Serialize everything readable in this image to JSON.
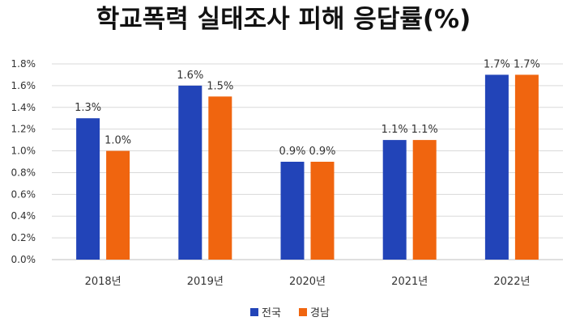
{
  "chart_data": {
    "type": "bar",
    "title": "학교폭력 실태조사 피해 응답률(%)",
    "xlabel": "",
    "ylabel": "",
    "categories": [
      "2018년",
      "2019년",
      "2020년",
      "2021년",
      "2022년"
    ],
    "series": [
      {
        "name": "전국",
        "values": [
          1.3,
          1.6,
          0.9,
          1.1,
          1.7
        ],
        "labels": [
          "1.3%",
          "1.6%",
          "0.9%",
          "1.1%",
          "1.7%"
        ],
        "color": "#2244b8"
      },
      {
        "name": "경남",
        "values": [
          1.0,
          1.5,
          0.9,
          1.1,
          1.7
        ],
        "labels": [
          "1.0%",
          "1.5%",
          "0.9%",
          "1.1%",
          "1.7%"
        ],
        "color": "#f0650f"
      }
    ],
    "ylim": [
      0,
      1.8
    ],
    "yticks": [
      "0.0%",
      "0.2%",
      "0.4%",
      "0.6%",
      "0.8%",
      "1.0%",
      "1.2%",
      "1.4%",
      "1.6%",
      "1.8%"
    ],
    "grid": true,
    "legend_position": "bottom"
  }
}
